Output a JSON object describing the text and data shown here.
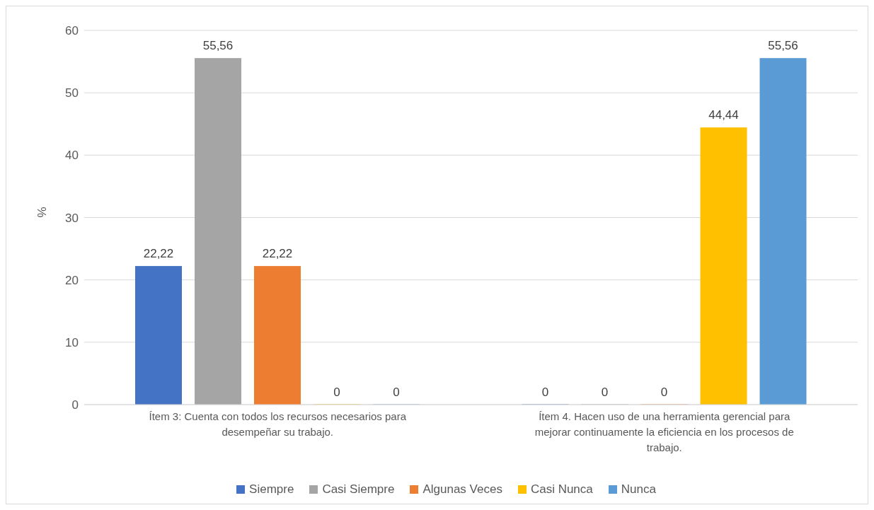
{
  "chart_data": {
    "type": "bar",
    "ylabel": "%",
    "categories": [
      "Ítem 3: Cuenta con todos los recursos necesarios para desempeñar su trabajo.",
      "Ítem 4. Hacen uso de una herramienta gerencial para mejorar continuamente la eficiencia en los procesos de trabajo."
    ],
    "series": [
      {
        "name": "Siempre",
        "color": "#4472c4",
        "values": [
          22.22,
          0
        ],
        "value_labels": [
          "22,22",
          "0"
        ]
      },
      {
        "name": "Casi Siempre",
        "color": "#a5a5a5",
        "values": [
          55.56,
          0
        ],
        "value_labels": [
          "55,56",
          "0"
        ]
      },
      {
        "name": "Algunas Veces",
        "color": "#ed7d31",
        "values": [
          22.22,
          0
        ],
        "value_labels": [
          "22,22",
          "0"
        ]
      },
      {
        "name": "Casi Nunca",
        "color": "#ffc000",
        "values": [
          0,
          44.44
        ],
        "value_labels": [
          "0",
          "44,44"
        ]
      },
      {
        "name": "Nunca",
        "color": "#5b9bd5",
        "values": [
          0,
          55.56
        ],
        "value_labels": [
          "0",
          "55,56"
        ]
      }
    ],
    "ylim": [
      0,
      60
    ],
    "yticks": [
      0,
      10,
      20,
      30,
      40,
      50,
      60
    ],
    "grid": "y",
    "legend": "bottom"
  }
}
